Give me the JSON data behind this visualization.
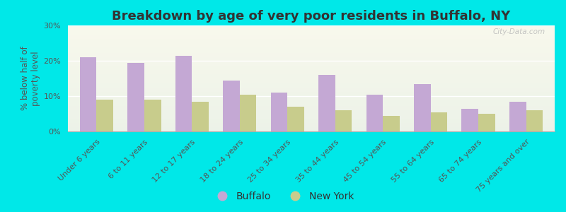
{
  "title": "Breakdown by age of very poor residents in Buffalo, NY",
  "ylabel": "% below half of\npoverty level",
  "categories": [
    "Under 6 years",
    "6 to 11 years",
    "12 to 17 years",
    "18 to 24 years",
    "25 to 34 years",
    "35 to 44 years",
    "45 to 54 years",
    "55 to 64 years",
    "65 to 74 years",
    "75 years and over"
  ],
  "buffalo_values": [
    21,
    19.5,
    21.5,
    14.5,
    11,
    16,
    10.5,
    13.5,
    6.5,
    8.5
  ],
  "newyork_values": [
    9,
    9,
    8.5,
    10.5,
    7,
    6,
    4.5,
    5.5,
    5,
    6
  ],
  "buffalo_color": "#c4a8d4",
  "newyork_color": "#c8cc8c",
  "background_outer": "#00e8e8",
  "ylim": [
    0,
    30
  ],
  "yticks": [
    0,
    10,
    20,
    30
  ],
  "ytick_labels": [
    "0%",
    "10%",
    "20%",
    "30%"
  ],
  "bar_width": 0.35,
  "title_fontsize": 13,
  "tick_fontsize": 8,
  "ylabel_fontsize": 8.5,
  "legend_fontsize": 10,
  "watermark": "City-Data.com"
}
